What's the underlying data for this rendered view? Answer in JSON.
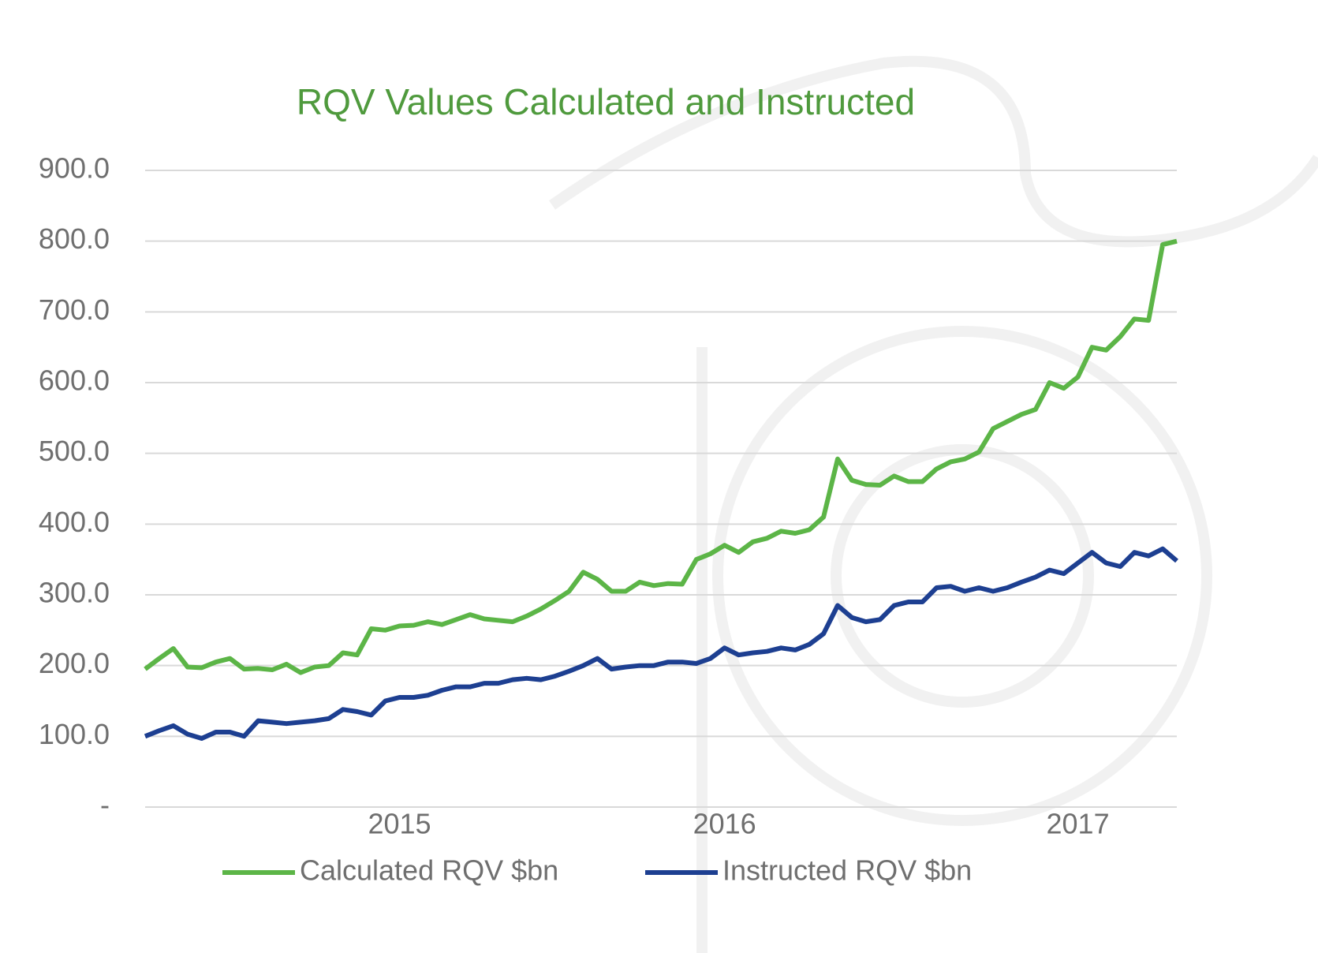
{
  "chart_data": {
    "type": "line",
    "title": "RQV Values Calculated and Instructed",
    "categories": [
      null,
      null,
      null,
      null,
      null,
      null,
      null,
      null,
      null,
      null,
      null,
      null,
      null,
      null,
      null,
      null,
      null,
      null,
      "2015",
      null,
      null,
      null,
      null,
      null,
      null,
      null,
      null,
      null,
      null,
      null,
      null,
      null,
      null,
      null,
      null,
      null,
      null,
      null,
      null,
      null,
      null,
      "2016",
      null,
      null,
      null,
      null,
      null,
      null,
      null,
      null,
      null,
      null,
      null,
      null,
      null,
      null,
      null,
      null,
      null,
      null,
      null,
      null,
      null,
      null,
      null,
      null,
      "2017",
      null,
      null,
      null,
      null,
      null,
      null,
      null
    ],
    "series": [
      {
        "name": "Calculated RQV $bn",
        "color": "#5cb547",
        "values": [
          195,
          210,
          224,
          198,
          197,
          205,
          210,
          195,
          196,
          194,
          202,
          190,
          198,
          200,
          218,
          215,
          252,
          250,
          256,
          257,
          262,
          258,
          265,
          272,
          266,
          264,
          262,
          270,
          280,
          292,
          305,
          332,
          322,
          305,
          305,
          318,
          313,
          316,
          315,
          350,
          358,
          370,
          360,
          375,
          380,
          390,
          387,
          392,
          410,
          492,
          462,
          456,
          455,
          468,
          460,
          460,
          478,
          488,
          492,
          502,
          535,
          545,
          555,
          562,
          600,
          592,
          608,
          650,
          646,
          665,
          690,
          688,
          795,
          800
        ]
      },
      {
        "name": "Instructed RQV $bn",
        "color": "#1d3f91",
        "values": [
          100,
          108,
          115,
          103,
          97,
          106,
          106,
          100,
          122,
          120,
          118,
          120,
          122,
          125,
          138,
          135,
          130,
          150,
          155,
          155,
          158,
          165,
          170,
          170,
          175,
          175,
          180,
          182,
          180,
          185,
          192,
          200,
          210,
          195,
          198,
          200,
          200,
          205,
          205,
          203,
          210,
          225,
          215,
          218,
          220,
          225,
          222,
          230,
          245,
          285,
          268,
          262,
          265,
          285,
          290,
          290,
          310,
          312,
          305,
          310,
          305,
          310,
          318,
          325,
          335,
          330,
          345,
          360,
          345,
          340,
          360,
          355,
          365,
          348
        ]
      }
    ],
    "ylim": [
      0,
      900
    ],
    "yticks": [
      {
        "value": 0,
        "label": "-"
      },
      {
        "value": 100,
        "label": "100.0"
      },
      {
        "value": 200,
        "label": "200.0"
      },
      {
        "value": 300,
        "label": "300.0"
      },
      {
        "value": 400,
        "label": "400.0"
      },
      {
        "value": 500,
        "label": "500.0"
      },
      {
        "value": 600,
        "label": "600.0"
      },
      {
        "value": 700,
        "label": "700.0"
      },
      {
        "value": 800,
        "label": "800.0"
      },
      {
        "value": 900,
        "label": "900.0"
      }
    ],
    "grid": true,
    "legend": "bottom"
  }
}
